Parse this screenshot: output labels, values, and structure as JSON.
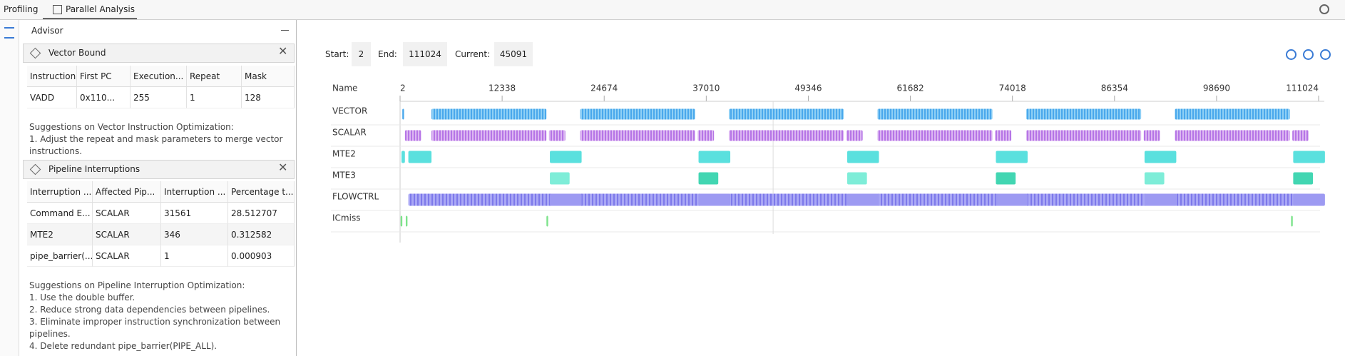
{
  "tabs": [
    "Profiling",
    "Parallel Analysis"
  ],
  "advisor": {
    "title": "Advisor",
    "vector_bound": {
      "title": "Vector Bound",
      "columns": [
        "Instruction",
        "First PC",
        "Execution...",
        "Repeat",
        "Mask"
      ],
      "rows": [
        [
          "VADD",
          "0x110...",
          "255",
          "1",
          "128"
        ]
      ],
      "suggestion_title": "Suggestions on Vector Instruction Optimization:",
      "suggestions": [
        "1. Adjust the repeat and mask parameters to merge vector",
        "instructions."
      ]
    },
    "pipeline": {
      "title": "Pipeline Interruptions",
      "columns": [
        "Interruption ...",
        "Affected Pip...",
        "Interruption ...",
        "Percentage t..."
      ],
      "rows": [
        [
          "Command E...",
          "SCALAR",
          "31561",
          "28.512707"
        ],
        [
          "MTE2",
          "SCALAR",
          "346",
          "0.312582"
        ],
        [
          "pipe_barrier(...",
          "SCALAR",
          "1",
          "0.000903"
        ]
      ],
      "suggestion_title": "Suggestions on Pipeline Interruption Optimization:",
      "suggestions": [
        "1. Use the double buffer.",
        "2. Reduce strong data dependencies between pipelines.",
        "3. Eliminate improper instruction synchronization between",
        "pipelines.",
        "4. Delete redundant pipe_barrier(PIPE_ALL)."
      ]
    }
  },
  "timeline": {
    "start_label": "Start:",
    "start": 2,
    "end_label": "End:",
    "end": 111024,
    "current_label": "Current:",
    "current": 45091,
    "name_header": "Name",
    "ticks": [
      2,
      12338,
      24674,
      37010,
      49346,
      61682,
      74018,
      86354,
      98690,
      111024
    ],
    "rows": [
      "VECTOR",
      "SCALAR",
      "MTE2",
      "MTE3",
      "FLOWCTRL",
      "ICmiss"
    ]
  }
}
